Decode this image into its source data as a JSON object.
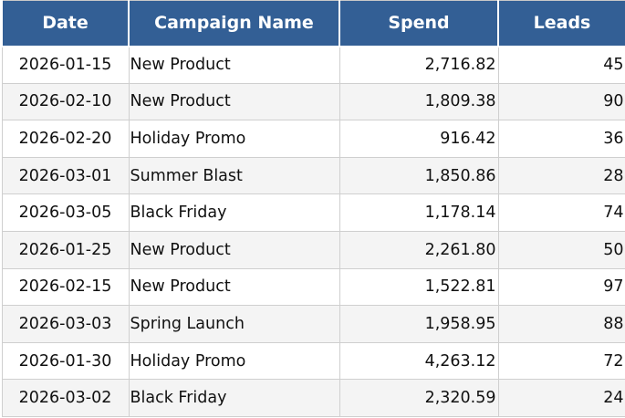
{
  "table": {
    "columns": [
      "Date",
      "Campaign Name",
      "Spend",
      "Leads"
    ],
    "rows": [
      {
        "date": "2026-01-15",
        "campaign": "New Product",
        "spend": "2,716.82",
        "leads": "45"
      },
      {
        "date": "2026-02-10",
        "campaign": "New Product",
        "spend": "1,809.38",
        "leads": "90"
      },
      {
        "date": "2026-02-20",
        "campaign": "Holiday Promo",
        "spend": "916.42",
        "leads": "36"
      },
      {
        "date": "2026-03-01",
        "campaign": "Summer Blast",
        "spend": "1,850.86",
        "leads": "28"
      },
      {
        "date": "2026-03-05",
        "campaign": "Black Friday",
        "spend": "1,178.14",
        "leads": "74"
      },
      {
        "date": "2026-01-25",
        "campaign": "New Product",
        "spend": "2,261.80",
        "leads": "50"
      },
      {
        "date": "2026-02-15",
        "campaign": "New Product",
        "spend": "1,522.81",
        "leads": "97"
      },
      {
        "date": "2026-03-03",
        "campaign": "Spring Launch",
        "spend": "1,958.95",
        "leads": "88"
      },
      {
        "date": "2026-01-30",
        "campaign": "Holiday Promo",
        "spend": "4,263.12",
        "leads": "72"
      },
      {
        "date": "2026-03-02",
        "campaign": "Black Friday",
        "spend": "2,320.59",
        "leads": "24"
      }
    ]
  },
  "colors": {
    "header_background": "#335f95",
    "header_text": "#ffffff",
    "grid_line": "#cfcfcf",
    "alt_row": "#f4f4f4"
  }
}
